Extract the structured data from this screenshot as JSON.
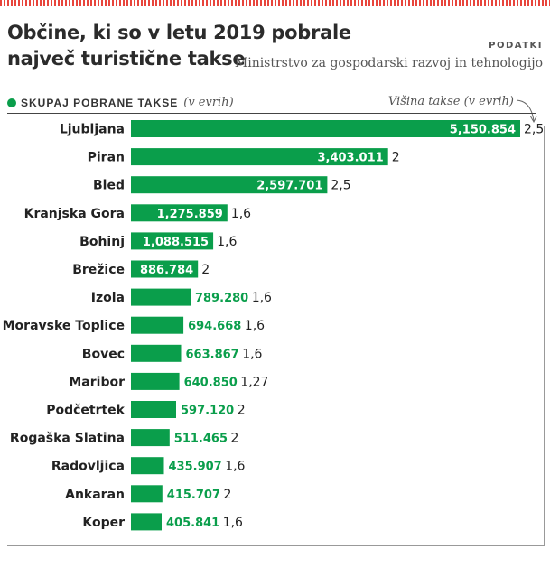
{
  "header": {
    "title": "Občine, ki so v letu 2019 pobrale največ turistične takse",
    "source_label": "PODATKI",
    "source_text": "Ministrstvo za gospodarski razvoj in tehnologijo"
  },
  "legend": {
    "series_label": "SKUPAJ POBRANE TAKSE",
    "series_unit": "(v evrih)",
    "rate_label": "Višina takse (v evrih)"
  },
  "colors": {
    "bar": "#0a9e4b",
    "label_outside": "#0a9e4b",
    "label_inside": "#ffffff",
    "text": "#222222"
  },
  "chart_data": {
    "type": "bar",
    "orientation": "horizontal",
    "categories": [
      "Ljubljana",
      "Piran",
      "Bled",
      "Kranjska Gora",
      "Bohinj",
      "Brežice",
      "Izola",
      "Moravske Toplice",
      "Bovec",
      "Maribor",
      "Podčetrtek",
      "Rogaška Slatina",
      "Radovljica",
      "Ankaran",
      "Koper"
    ],
    "series": [
      {
        "name": "SKUPAJ POBRANE TAKSE",
        "values": [
          5150854,
          3403011,
          2597701,
          1275859,
          1088515,
          886784,
          789280,
          694668,
          663867,
          640850,
          597120,
          511465,
          435907,
          415707,
          405841
        ],
        "value_labels": [
          "5,150.854",
          "3,403.011",
          "2,597.701",
          "1,275.859",
          "1,088.515",
          "886.784",
          "789.280",
          "694.668",
          "663.867",
          "640.850",
          "597.120",
          "511.465",
          "435.907",
          "415.707",
          "405.841"
        ]
      }
    ],
    "rates": [
      "2,5",
      "2",
      "2,5",
      "1,6",
      "1,6",
      "2",
      "1,6",
      "1,6",
      "1,6",
      "1,27",
      "2",
      "2",
      "1,6",
      "2",
      "1,6"
    ],
    "xlim": [
      0,
      5150854
    ],
    "grid": false
  }
}
